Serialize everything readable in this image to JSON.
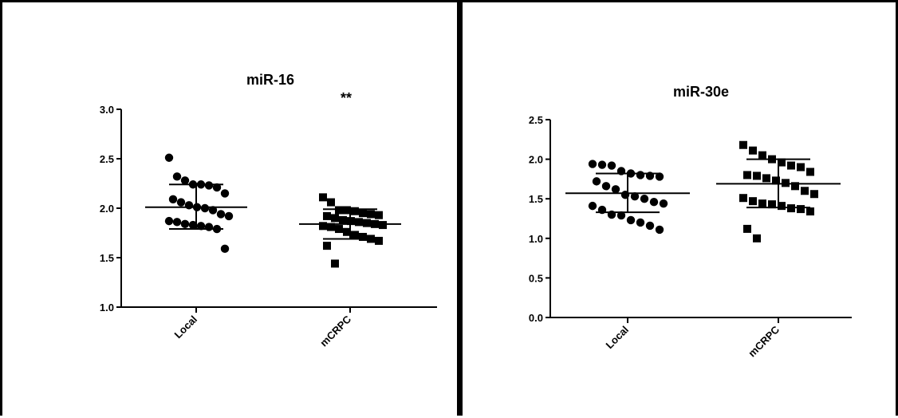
{
  "chart_data": [
    {
      "type": "scatter",
      "title": "miR-16",
      "annotation": "**",
      "ylim": [
        1.0,
        3.0
      ],
      "yticks": [
        "1.0",
        "1.5",
        "2.0",
        "2.5",
        "3.0"
      ],
      "categories": [
        "Local",
        "mCRPC"
      ],
      "series": [
        {
          "category": "Local",
          "marker": "circle",
          "mean": 2.01,
          "sd_low": 1.79,
          "sd_high": 2.24,
          "points": [
            2.51,
            2.32,
            2.28,
            2.24,
            2.24,
            2.23,
            2.21,
            2.15,
            2.09,
            2.06,
            2.03,
            2.01,
            2.0,
            1.98,
            1.94,
            1.92,
            1.87,
            1.86,
            1.84,
            1.83,
            1.82,
            1.81,
            1.79,
            1.59
          ]
        },
        {
          "category": "mCRPC",
          "marker": "square",
          "mean": 1.84,
          "sd_low": 1.69,
          "sd_high": 1.99,
          "points": [
            2.11,
            2.06,
            1.98,
            1.98,
            1.97,
            1.95,
            1.94,
            1.93,
            1.92,
            1.9,
            1.88,
            1.87,
            1.86,
            1.85,
            1.84,
            1.83,
            1.82,
            1.81,
            1.79,
            1.76,
            1.73,
            1.71,
            1.69,
            1.67,
            1.62,
            1.44
          ]
        }
      ]
    },
    {
      "type": "scatter",
      "title": "miR-30e",
      "ylim": [
        0.0,
        2.5
      ],
      "yticks": [
        "0.0",
        "0.5",
        "1.0",
        "1.5",
        "2.0",
        "2.5"
      ],
      "categories": [
        "Local",
        "mCRPC"
      ],
      "series": [
        {
          "category": "Local",
          "marker": "circle",
          "mean": 1.57,
          "sd_low": 1.33,
          "sd_high": 1.82,
          "points": [
            1.94,
            1.93,
            1.92,
            1.85,
            1.82,
            1.8,
            1.79,
            1.78,
            1.72,
            1.66,
            1.62,
            1.55,
            1.53,
            1.5,
            1.46,
            1.44,
            1.41,
            1.36,
            1.3,
            1.29,
            1.23,
            1.2,
            1.16,
            1.11
          ]
        },
        {
          "category": "mCRPC",
          "marker": "square",
          "mean": 1.69,
          "sd_low": 1.39,
          "sd_high": 2.0,
          "points": [
            2.18,
            2.11,
            2.05,
            2.0,
            1.96,
            1.92,
            1.9,
            1.84,
            1.8,
            1.79,
            1.76,
            1.73,
            1.7,
            1.66,
            1.6,
            1.56,
            1.51,
            1.47,
            1.44,
            1.43,
            1.41,
            1.38,
            1.37,
            1.34,
            1.12,
            1.0
          ]
        }
      ]
    }
  ]
}
